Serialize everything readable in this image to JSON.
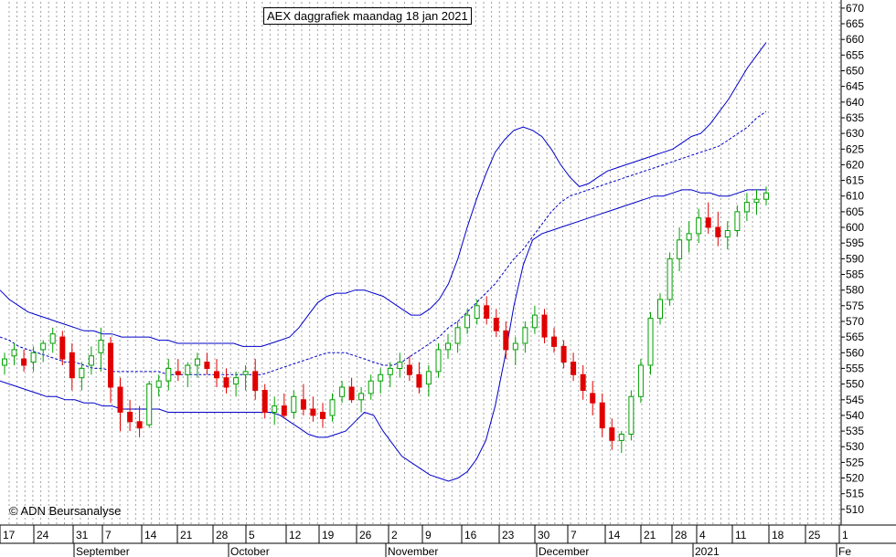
{
  "title": "AEX daggrafiek maandag 18 jan 2021",
  "credit": "© ADN Beursanalyse",
  "colors": {
    "up": "#00a000",
    "down": "#e00000",
    "band": "#0000c8",
    "grid": "#a0a0a0"
  },
  "chart_data": {
    "type": "candlestick",
    "ylim": [
      505,
      672
    ],
    "yticks": [
      510,
      515,
      520,
      525,
      530,
      535,
      540,
      545,
      550,
      555,
      560,
      565,
      570,
      575,
      580,
      585,
      590,
      595,
      600,
      605,
      610,
      615,
      620,
      625,
      630,
      635,
      640,
      645,
      650,
      655,
      660,
      665,
      670
    ],
    "x_day_labels": [
      "17",
      "24",
      "31",
      "7",
      "14",
      "21",
      "28",
      "5",
      "12",
      "19",
      "26",
      "2",
      "9",
      "16",
      "23",
      "30",
      "7",
      "14",
      "21",
      "28",
      "4",
      "11",
      "18",
      "25",
      "1"
    ],
    "month_labels": [
      "September",
      "October",
      "November",
      "December",
      "2021",
      "Fe"
    ],
    "bands": {
      "upper": [
        580,
        577,
        575,
        573,
        572,
        571,
        570,
        569,
        568,
        567,
        567,
        566,
        566,
        565,
        565,
        565,
        565,
        564,
        564,
        563,
        563,
        563,
        563,
        563,
        563,
        563,
        562,
        562,
        562,
        563,
        564,
        565,
        568,
        572,
        576,
        578,
        579,
        579,
        580,
        580,
        579,
        578,
        576,
        574,
        572,
        572,
        574,
        577,
        582,
        590,
        600,
        609,
        617,
        624,
        628,
        631,
        632,
        631,
        629,
        625,
        620,
        616,
        613,
        614,
        616,
        618,
        619,
        620,
        621,
        622,
        623,
        624,
        625,
        627,
        629,
        630,
        633,
        637,
        641,
        646,
        651,
        655,
        659
      ],
      "middle": [
        565,
        564,
        562,
        561,
        560,
        559,
        558,
        557,
        557,
        556,
        555,
        555,
        554,
        554,
        554,
        554,
        554,
        554,
        553,
        553,
        553,
        553,
        553,
        553,
        553,
        553,
        553,
        553,
        553,
        554,
        555,
        556,
        557,
        558,
        559,
        560,
        560,
        560,
        559,
        558,
        557,
        556,
        556,
        557,
        559,
        561,
        563,
        565,
        568,
        570,
        573,
        576,
        579,
        582,
        586,
        590,
        593,
        597,
        601,
        605,
        608,
        610,
        611,
        612,
        613,
        614,
        615,
        616,
        617,
        618,
        619,
        620,
        621,
        622,
        623,
        624,
        625,
        626,
        628,
        630,
        632,
        635,
        637
      ],
      "lower": [
        551,
        550,
        549,
        548,
        547,
        546,
        546,
        545,
        545,
        544,
        544,
        543,
        543,
        542,
        542,
        542,
        542,
        542,
        541,
        541,
        541,
        541,
        541,
        541,
        541,
        541,
        541,
        541,
        541,
        541,
        540,
        538,
        536,
        534,
        533,
        533,
        534,
        535,
        538,
        541,
        540,
        535,
        531,
        527,
        525,
        523,
        521,
        520,
        519,
        520,
        522,
        526,
        532,
        543,
        558,
        575,
        588,
        596,
        598,
        599,
        600,
        601,
        602,
        603,
        604,
        605,
        606,
        607,
        608,
        609,
        610,
        610,
        611,
        612,
        612,
        611,
        611,
        610,
        610,
        611,
        612,
        612,
        612
      ],
      "n": 83
    },
    "candles": [
      [
        556,
        560,
        553,
        558
      ],
      [
        559,
        563,
        556,
        561
      ],
      [
        558,
        561,
        554,
        556
      ],
      [
        557,
        562,
        554,
        560
      ],
      [
        561,
        564,
        557,
        563
      ],
      [
        563,
        568,
        560,
        566
      ],
      [
        565,
        567,
        556,
        558
      ],
      [
        560,
        563,
        548,
        552
      ],
      [
        552,
        557,
        548,
        555
      ],
      [
        556,
        562,
        553,
        559
      ],
      [
        560,
        568,
        554,
        564
      ],
      [
        563,
        565,
        544,
        549
      ],
      [
        549,
        552,
        535,
        541
      ],
      [
        541,
        545,
        535,
        538
      ],
      [
        538,
        543,
        533,
        536
      ],
      [
        537,
        551,
        536,
        550
      ],
      [
        549,
        553,
        546,
        551
      ],
      [
        551,
        558,
        548,
        555
      ],
      [
        554,
        558,
        551,
        553
      ],
      [
        553,
        557,
        549,
        556
      ],
      [
        556,
        560,
        552,
        558
      ],
      [
        557,
        560,
        553,
        555
      ],
      [
        554,
        558,
        549,
        552
      ],
      [
        552,
        555,
        547,
        549
      ],
      [
        550,
        554,
        546,
        552
      ],
      [
        553,
        556,
        548,
        554
      ],
      [
        554,
        558,
        545,
        548
      ],
      [
        548,
        550,
        539,
        541
      ],
      [
        541,
        546,
        537,
        543
      ],
      [
        543,
        547,
        539,
        540
      ],
      [
        541,
        548,
        539,
        546
      ],
      [
        545,
        550,
        540,
        542
      ],
      [
        542,
        546,
        538,
        540
      ],
      [
        541,
        544,
        536,
        539
      ],
      [
        540,
        547,
        538,
        545
      ],
      [
        546,
        551,
        544,
        549
      ],
      [
        549,
        552,
        544,
        545
      ],
      [
        545,
        549,
        541,
        547
      ],
      [
        547,
        553,
        545,
        551
      ],
      [
        551,
        555,
        547,
        553
      ],
      [
        553,
        557,
        549,
        555
      ],
      [
        555,
        560,
        552,
        557
      ],
      [
        556,
        559,
        551,
        553
      ],
      [
        553,
        557,
        547,
        549
      ],
      [
        550,
        556,
        546,
        554
      ],
      [
        554,
        563,
        552,
        561
      ],
      [
        561,
        566,
        558,
        563
      ],
      [
        563,
        570,
        560,
        568
      ],
      [
        568,
        574,
        566,
        572
      ],
      [
        571,
        577,
        569,
        575
      ],
      [
        575,
        578,
        569,
        571
      ],
      [
        571,
        574,
        565,
        567
      ],
      [
        567,
        570,
        558,
        561
      ],
      [
        561,
        565,
        556,
        563
      ],
      [
        563,
        570,
        560,
        568
      ],
      [
        568,
        575,
        566,
        572
      ],
      [
        572,
        574,
        563,
        565
      ],
      [
        565,
        568,
        560,
        562
      ],
      [
        562,
        564,
        555,
        557
      ],
      [
        557,
        560,
        551,
        553
      ],
      [
        553,
        556,
        545,
        548
      ],
      [
        547,
        551,
        540,
        544
      ],
      [
        544,
        547,
        533,
        536
      ],
      [
        536,
        539,
        529,
        532
      ],
      [
        532,
        535,
        528,
        534
      ],
      [
        534,
        548,
        532,
        546
      ],
      [
        546,
        558,
        544,
        556
      ],
      [
        556,
        573,
        553,
        571
      ],
      [
        571,
        579,
        569,
        577
      ],
      [
        577,
        592,
        575,
        590
      ],
      [
        590,
        600,
        586,
        596
      ],
      [
        596,
        602,
        592,
        598
      ],
      [
        598,
        606,
        595,
        603
      ],
      [
        603,
        608,
        598,
        600
      ],
      [
        600,
        605,
        594,
        597
      ],
      [
        597,
        602,
        593,
        599
      ],
      [
        599,
        607,
        597,
        605
      ],
      [
        605,
        611,
        602,
        608
      ],
      [
        608,
        612,
        604,
        609
      ],
      [
        609,
        613,
        607,
        611
      ]
    ]
  }
}
